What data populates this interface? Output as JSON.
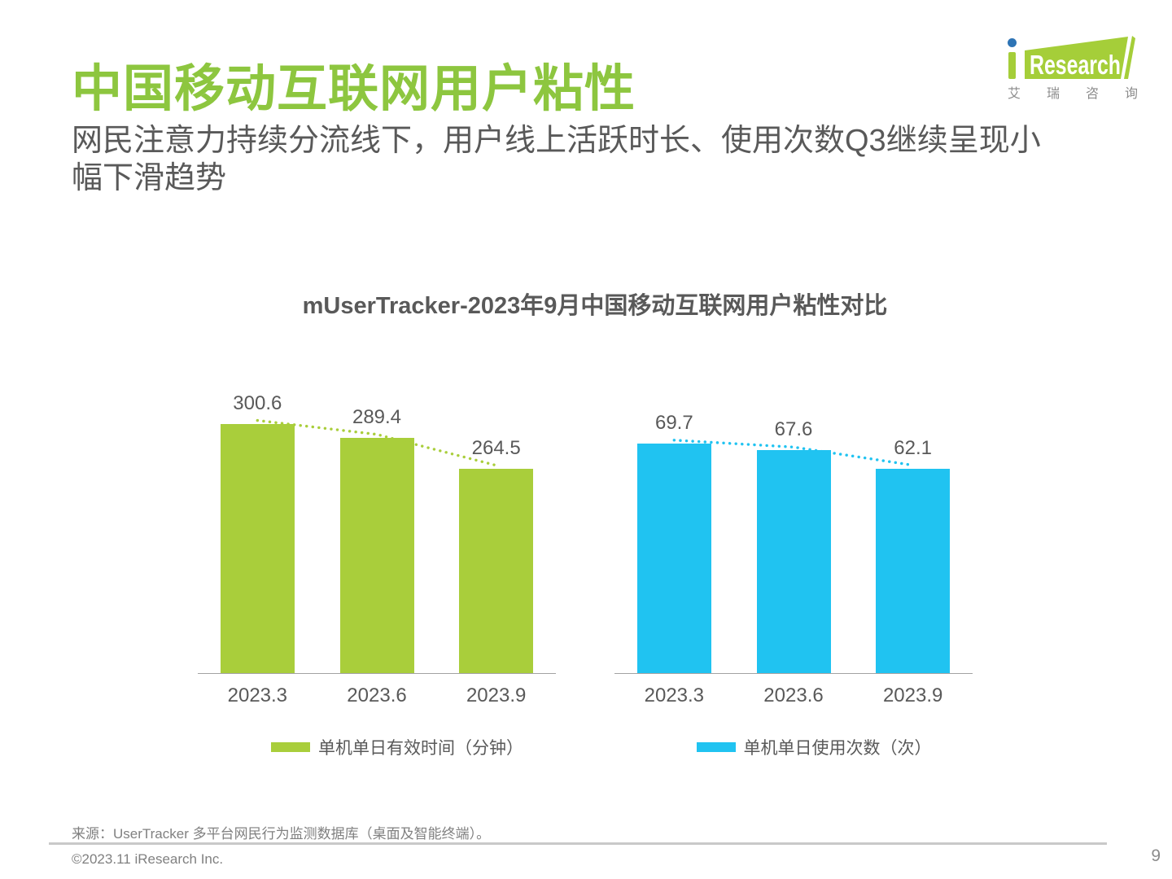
{
  "header": {
    "title": "中国移动互联网用户粘性",
    "title_color": "#8DC63F",
    "subtitle_lines": [
      "网民注意力持续分流线下，用户线上活跃时长、使用次数Q3继续呈现小",
      "幅下滑趋势"
    ]
  },
  "logo": {
    "brand_i": "i",
    "brand_text": "Research",
    "cn_text": "艾瑞咨询",
    "green": "#A5CE39",
    "dot_blue": "#2E74B5",
    "text_color": "#FFFFFF"
  },
  "chart": {
    "title": "mUserTracker-2023年9月中国移动互联网用户粘性对比"
  },
  "chart_data": [
    {
      "type": "bar",
      "name": "single-device-daily-effective-time",
      "categories": [
        "2023.3",
        "2023.6",
        "2023.9"
      ],
      "values": [
        300.6,
        289.4,
        264.5
      ],
      "legend": "单机单日有效时间（分钟）",
      "color": "#A9CE3B",
      "ylim": [
        100,
        320
      ],
      "trendline": "dotted",
      "grid": false,
      "legend_position": "bottom"
    },
    {
      "type": "bar",
      "name": "single-device-daily-usage-count",
      "categories": [
        "2023.3",
        "2023.6",
        "2023.9"
      ],
      "values": [
        69.7,
        67.6,
        62.1
      ],
      "legend": "单机单日使用次数（次）",
      "color": "#20C3F1",
      "ylim": [
        0,
        83
      ],
      "trendline": "dotted",
      "grid": false,
      "legend_position": "bottom"
    }
  ],
  "footer": {
    "source": "来源：UserTracker 多平台网民行为监测数据库（桌面及智能终端）。",
    "copyright": "©2023.11 iResearch Inc.",
    "page_number": "9"
  }
}
